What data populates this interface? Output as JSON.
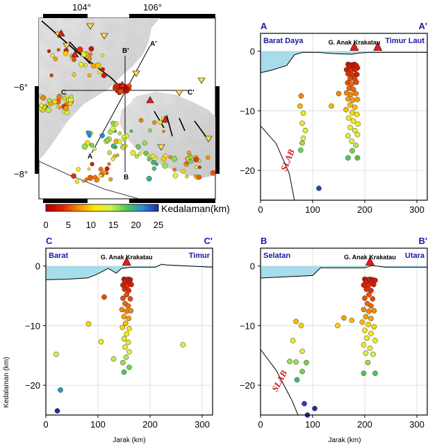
{
  "map": {
    "lon_ticks": [
      "104°",
      "106°"
    ],
    "lat_ticks": [
      "−6°",
      "−8°"
    ],
    "section_letters": [
      "A",
      "A'",
      "B",
      "B'",
      "C",
      "C'"
    ]
  },
  "colorbar": {
    "label": "Kedalaman(km)",
    "ticks": [
      "0",
      "5",
      "10",
      "15",
      "20",
      "25"
    ],
    "colors": [
      "#b00000",
      "#e02000",
      "#f58a00",
      "#ffe600",
      "#d6f050",
      "#50c850",
      "#2a8cd6",
      "#1f2fa0"
    ]
  },
  "labels": {
    "ylabel": "Kedalaman (km)",
    "xlabel": "Jarak (km)",
    "slab": "SLAB",
    "volcano": "G. Anak Krakatau"
  },
  "chart_data": [
    {
      "type": "scatter",
      "section": "A-A'",
      "corner_left": "A",
      "corner_right": "A'",
      "dir_left": "Barat Daya",
      "dir_right": "Timur Laut",
      "xlim": [
        0,
        320
      ],
      "ylim": [
        -25,
        3
      ],
      "xticks": [
        "0",
        "100",
        "200",
        "300"
      ],
      "yticks": [
        "0",
        "−10",
        "−20"
      ],
      "volcano_x": [
        180,
        225
      ],
      "points": [
        [
          168,
          -2.2,
          2
        ],
        [
          172,
          -2.3,
          2
        ],
        [
          176,
          -2.3,
          3
        ],
        [
          180,
          -2.2,
          2
        ],
        [
          184,
          -2.4,
          3
        ],
        [
          170,
          -2.6,
          3
        ],
        [
          178,
          -2.7,
          2
        ],
        [
          186,
          -2.8,
          3
        ],
        [
          165,
          -3.1,
          3
        ],
        [
          173,
          -3.2,
          4
        ],
        [
          181,
          -3.1,
          3
        ],
        [
          168,
          -3.8,
          4
        ],
        [
          177,
          -4.0,
          4
        ],
        [
          185,
          -3.9,
          3
        ],
        [
          172,
          -4.6,
          5
        ],
        [
          181,
          -4.7,
          5
        ],
        [
          167,
          -5.3,
          5
        ],
        [
          175,
          -5.5,
          6
        ],
        [
          184,
          -5.2,
          5
        ],
        [
          170,
          -6.2,
          6
        ],
        [
          178,
          -6.4,
          6
        ],
        [
          165,
          -7.0,
          7
        ],
        [
          173,
          -7.3,
          7
        ],
        [
          183,
          -7.1,
          7
        ],
        [
          168,
          -8.0,
          8
        ],
        [
          177,
          -8.2,
          8
        ],
        [
          186,
          -8.1,
          8
        ],
        [
          172,
          -9.0,
          9
        ],
        [
          181,
          -9.4,
          9
        ],
        [
          164,
          -9.8,
          9
        ],
        [
          176,
          -10.3,
          10
        ],
        [
          185,
          -10.6,
          11
        ],
        [
          169,
          -11.2,
          11
        ],
        [
          178,
          -11.7,
          12
        ],
        [
          187,
          -12.2,
          12
        ],
        [
          172,
          -12.8,
          12
        ],
        [
          181,
          -13.3,
          13
        ],
        [
          168,
          -14.2,
          14
        ],
        [
          186,
          -14.0,
          13
        ],
        [
          175,
          -15.1,
          14
        ],
        [
          183,
          -15.8,
          15
        ],
        [
          176,
          -16.7,
          17
        ],
        [
          168,
          -17.9,
          18
        ],
        [
          186,
          -17.9,
          18
        ],
        [
          78,
          -7.5,
          7
        ],
        [
          76,
          -9.2,
          9
        ],
        [
          82,
          -10.4,
          11
        ],
        [
          80,
          -12.1,
          13
        ],
        [
          86,
          -13.3,
          13
        ],
        [
          82,
          -14.6,
          14
        ],
        [
          80,
          -15.4,
          16
        ],
        [
          77,
          -16.6,
          17
        ],
        [
          136,
          -9.2,
          9
        ],
        [
          150,
          -7.1,
          7
        ],
        [
          112,
          -23.0,
          24
        ]
      ]
    },
    {
      "type": "scatter",
      "section": "C-C'",
      "corner_left": "C",
      "corner_right": "C'",
      "dir_left": "Barat",
      "dir_right": "Timur",
      "xlim": [
        0,
        320
      ],
      "ylim": [
        -25,
        3
      ],
      "xticks": [
        "0",
        "100",
        "200",
        "300"
      ],
      "yticks": [
        "0",
        "−10",
        "−20"
      ],
      "volcano_x": [
        155
      ],
      "points": [
        [
          150,
          -2.2,
          2
        ],
        [
          154,
          -2.3,
          2
        ],
        [
          158,
          -2.2,
          3
        ],
        [
          162,
          -2.3,
          2
        ],
        [
          152,
          -2.7,
          3
        ],
        [
          160,
          -2.8,
          3
        ],
        [
          148,
          -3.2,
          3
        ],
        [
          156,
          -3.3,
          4
        ],
        [
          164,
          -3.1,
          3
        ],
        [
          151,
          -3.9,
          4
        ],
        [
          159,
          -4.1,
          4
        ],
        [
          155,
          -4.8,
          5
        ],
        [
          148,
          -5.4,
          5
        ],
        [
          162,
          -5.5,
          5
        ],
        [
          152,
          -6.3,
          6
        ],
        [
          158,
          -6.7,
          6
        ],
        [
          146,
          -7.3,
          7
        ],
        [
          155,
          -7.6,
          7
        ],
        [
          163,
          -7.5,
          7
        ],
        [
          150,
          -8.5,
          8
        ],
        [
          159,
          -8.8,
          8
        ],
        [
          153,
          -9.6,
          9
        ],
        [
          147,
          -10.3,
          10
        ],
        [
          160,
          -10.5,
          11
        ],
        [
          155,
          -11.4,
          11
        ],
        [
          150,
          -12.2,
          12
        ],
        [
          158,
          -12.8,
          12
        ],
        [
          152,
          -13.6,
          13
        ],
        [
          160,
          -14.4,
          14
        ],
        [
          154,
          -15.3,
          15
        ],
        [
          148,
          -16.2,
          16
        ],
        [
          160,
          -17.0,
          17
        ],
        [
          150,
          -17.8,
          18
        ],
        [
          82,
          -9.7,
          10
        ],
        [
          112,
          -5.2,
          5
        ],
        [
          106,
          -12.7,
          12
        ],
        [
          130,
          -15.6,
          15
        ],
        [
          20,
          -14.8,
          14
        ],
        [
          263,
          -13.2,
          13
        ],
        [
          28,
          -20.8,
          21
        ],
        [
          22,
          -24.3,
          25
        ]
      ]
    },
    {
      "type": "scatter",
      "section": "B-B'",
      "corner_left": "B",
      "corner_right": "B'",
      "dir_left": "Selatan",
      "dir_right": "Utara",
      "xlim": [
        0,
        320
      ],
      "ylim": [
        -25,
        3
      ],
      "xticks": [
        "0",
        "100",
        "200",
        "300"
      ],
      "yticks": [
        "0",
        "−10",
        "−20"
      ],
      "volcano_x": [
        210
      ],
      "points": [
        [
          200,
          -2.2,
          2
        ],
        [
          205,
          -2.3,
          2
        ],
        [
          210,
          -2.2,
          3
        ],
        [
          215,
          -2.3,
          2
        ],
        [
          220,
          -2.4,
          3
        ],
        [
          202,
          -2.7,
          3
        ],
        [
          212,
          -2.8,
          3
        ],
        [
          198,
          -3.2,
          3
        ],
        [
          207,
          -3.3,
          4
        ],
        [
          217,
          -3.1,
          3
        ],
        [
          203,
          -3.9,
          4
        ],
        [
          212,
          -4.1,
          4
        ],
        [
          208,
          -4.8,
          5
        ],
        [
          200,
          -5.4,
          5
        ],
        [
          215,
          -5.5,
          5
        ],
        [
          205,
          -6.3,
          6
        ],
        [
          212,
          -6.7,
          6
        ],
        [
          198,
          -7.3,
          7
        ],
        [
          208,
          -7.6,
          7
        ],
        [
          218,
          -7.5,
          7
        ],
        [
          202,
          -8.5,
          8
        ],
        [
          212,
          -8.8,
          8
        ],
        [
          195,
          -9.4,
          9
        ],
        [
          207,
          -9.8,
          10
        ],
        [
          218,
          -10.2,
          10
        ],
        [
          200,
          -10.8,
          11
        ],
        [
          212,
          -11.3,
          11
        ],
        [
          204,
          -12.1,
          12
        ],
        [
          220,
          -12.5,
          12
        ],
        [
          198,
          -13.2,
          13
        ],
        [
          210,
          -13.8,
          13
        ],
        [
          202,
          -14.6,
          14
        ],
        [
          216,
          -14.8,
          14
        ],
        [
          206,
          -16.2,
          16
        ],
        [
          198,
          -18.0,
          18
        ],
        [
          220,
          -18.0,
          18
        ],
        [
          68,
          -9.3,
          9
        ],
        [
          78,
          -10.0,
          10
        ],
        [
          62,
          -12.5,
          12
        ],
        [
          80,
          -14.3,
          14
        ],
        [
          56,
          -16.0,
          16
        ],
        [
          68,
          -16.1,
          16
        ],
        [
          80,
          -17.7,
          17
        ],
        [
          88,
          -16.2,
          17
        ],
        [
          70,
          -19.1,
          19
        ],
        [
          160,
          -8.7,
          8
        ],
        [
          148,
          -10.0,
          10
        ],
        [
          175,
          -9.1,
          9
        ],
        [
          84,
          -23.1,
          24
        ],
        [
          104,
          -23.9,
          25
        ],
        [
          90,
          -25.0,
          25
        ]
      ]
    }
  ]
}
